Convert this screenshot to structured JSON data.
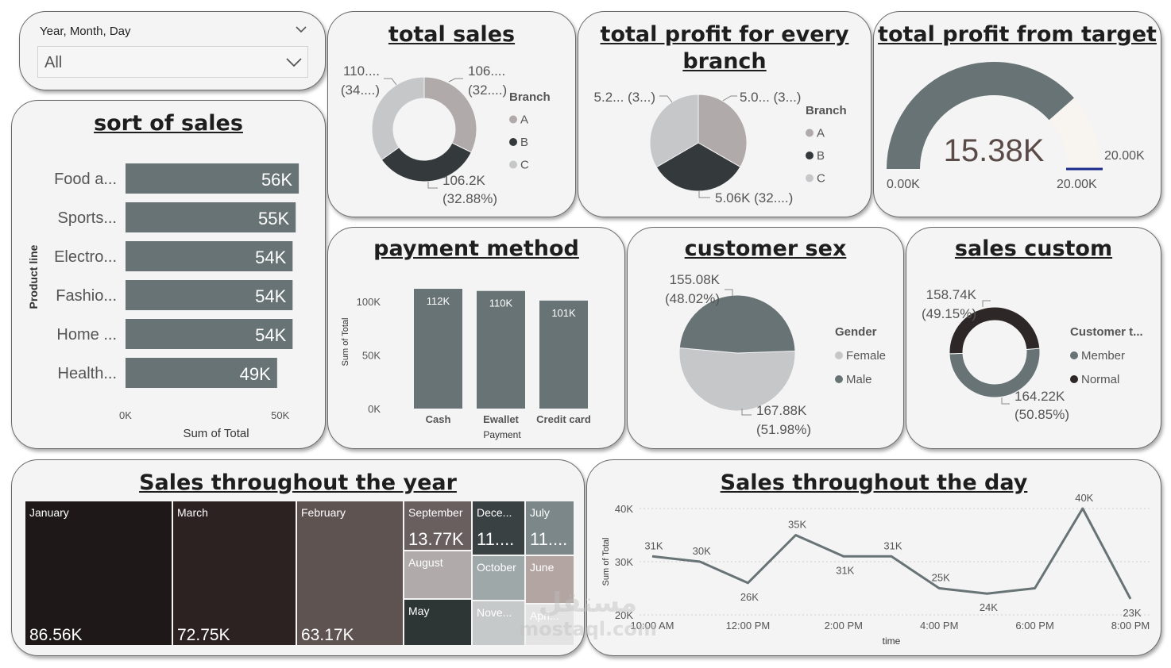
{
  "filter": {
    "label": "Year, Month, Day",
    "selected": "All"
  },
  "palette": {
    "slate": "#687376",
    "dark": "#343a3b",
    "light": "#c5c7c9",
    "taupe": "#b1aaaa",
    "cream": "#f8f5f0",
    "navy": "#1a2a8a"
  },
  "sort_of_sales": {
    "title": "sort of sales",
    "chart_data": {
      "type": "bar",
      "orientation": "horizontal",
      "categories": [
        "Food a...",
        "Sports...",
        "Electro...",
        "Fashio...",
        "Home ...",
        "Health..."
      ],
      "values": [
        56,
        55,
        54,
        54,
        54,
        49
      ],
      "labels": [
        "56K",
        "55K",
        "54K",
        "54K",
        "54K",
        "49K"
      ],
      "xlim": [
        0,
        57
      ],
      "ticks": [
        "0K",
        "50K"
      ],
      "tick_values": [
        0,
        50
      ],
      "xlabel": "Sum of Total",
      "ylabel": "Product line"
    }
  },
  "total_sales": {
    "title": "total sales",
    "chart_data": {
      "type": "pie",
      "donut": true,
      "legend_title": "Branch",
      "slices": [
        {
          "name": "A",
          "value": 32.25,
          "color": "#b1aaaa",
          "label1": "106....",
          "label2": "(32....)"
        },
        {
          "name": "B",
          "value": 32.88,
          "color": "#343a3b",
          "label1": "106.2K",
          "label2": "(32.88%)"
        },
        {
          "name": "C",
          "value": 34.87,
          "color": "#c5c7c9",
          "label1": "110....",
          "label2": "(34....)"
        }
      ]
    }
  },
  "profit_branch": {
    "title": [
      "total profit for every",
      "branch"
    ],
    "chart_data": {
      "type": "pie",
      "legend_title": "Branch",
      "slices": [
        {
          "name": "A",
          "value": 33.3,
          "color": "#b1aaaa",
          "label1": "5.0... (3...)"
        },
        {
          "name": "B",
          "value": 33.3,
          "color": "#343a3b",
          "label1": "5.06K (32....)"
        },
        {
          "name": "C",
          "value": 33.4,
          "color": "#c5c7c9",
          "label1": "5.2... (3...)"
        }
      ]
    }
  },
  "profit_target": {
    "title": "total profit from target",
    "chart_data": {
      "type": "gauge",
      "value": 15.38,
      "min": 0,
      "max": 20,
      "target": 20,
      "value_label": "15.38K",
      "min_label": "0.00K",
      "max_label": "20.00K",
      "target_label": "20.00K"
    }
  },
  "payment_method": {
    "title": "payment method",
    "chart_data": {
      "type": "bar",
      "categories": [
        "Cash",
        "Ewallet",
        "Credit card"
      ],
      "values": [
        112,
        110,
        101
      ],
      "labels": [
        "112K",
        "110K",
        "101K"
      ],
      "ylim": [
        0,
        115
      ],
      "ticks": [
        "0K",
        "50K",
        "100K"
      ],
      "tick_values": [
        0,
        50,
        100
      ],
      "xlabel": "Payment",
      "ylabel": "Sum of Total"
    }
  },
  "customer_sex": {
    "title": "customer sex",
    "chart_data": {
      "type": "pie",
      "legend_title": "Gender",
      "slices": [
        {
          "name": "Female",
          "value": 51.98,
          "color": "#c5c7c9",
          "label1": "167.88K",
          "label2": "(51.98%)"
        },
        {
          "name": "Male",
          "value": 48.02,
          "color": "#687376",
          "label1": "155.08K",
          "label2": "(48.02%)"
        }
      ]
    }
  },
  "sales_custom": {
    "title": "sales custom",
    "chart_data": {
      "type": "pie",
      "donut": true,
      "legend_title": "Customer t...",
      "slices": [
        {
          "name": "Member",
          "value": 50.85,
          "color": "#687376",
          "label1": "164.22K",
          "label2": "(50.85%)"
        },
        {
          "name": "Normal",
          "value": 49.15,
          "color": "#2e2727",
          "label1": "158.74K",
          "label2": "(49.15%)"
        }
      ]
    }
  },
  "sales_year": {
    "title": "Sales throughout the year",
    "chart_data": {
      "type": "treemap",
      "items": [
        {
          "name": "January",
          "label": "86.56K",
          "value": 86.56,
          "color": "#1e1818"
        },
        {
          "name": "March",
          "label": "72.75K",
          "value": 72.75,
          "color": "#2d2222"
        },
        {
          "name": "February",
          "label": "63.17K",
          "value": 63.17,
          "color": "#5f5352"
        },
        {
          "name": "September",
          "label": "13.77K",
          "value": 13.77,
          "color": "#695f5f"
        },
        {
          "name": "August",
          "label": "",
          "value": null,
          "color": "#b1aaaa"
        },
        {
          "name": "May",
          "label": "",
          "value": null,
          "color": "#2e3535"
        },
        {
          "name": "Dece...",
          "label": "11....",
          "value": null,
          "color": "#394142"
        },
        {
          "name": "October",
          "label": "",
          "value": null,
          "color": "#9fa8a9"
        },
        {
          "name": "Nove...",
          "label": "",
          "value": null,
          "color": "#c6c9ca"
        },
        {
          "name": "July",
          "label": "11....",
          "value": null,
          "color": "#7c8789"
        },
        {
          "name": "June",
          "label": "",
          "value": null,
          "color": "#b3a5a2"
        },
        {
          "name": "Apri...",
          "label": "",
          "value": null,
          "color": "#e3e3e3"
        }
      ]
    }
  },
  "sales_day": {
    "title": "Sales throughout the day",
    "chart_data": {
      "type": "line",
      "x": [
        10,
        11,
        12,
        13,
        14,
        15,
        16,
        17,
        18,
        19,
        20
      ],
      "values": [
        31,
        30,
        26,
        35,
        31,
        31,
        25,
        24,
        25,
        40,
        23
      ],
      "labels": [
        "31K",
        "30K",
        "26K",
        "35K",
        "31K",
        "31K",
        "25K",
        "24K",
        "",
        "40K",
        "23K"
      ],
      "ylim": [
        20,
        40
      ],
      "yticks": [
        "20K",
        "30K",
        "40K"
      ],
      "ytick_values": [
        20,
        30,
        40
      ],
      "xticks": [
        "10:00 AM",
        "12:00 PM",
        "2:00 PM",
        "4:00 PM",
        "6:00 PM",
        "8:00 PM"
      ],
      "xtick_values": [
        10,
        12,
        14,
        16,
        18,
        20
      ],
      "xlabel": "time",
      "ylabel": "Sum of Total",
      "color": "#687376"
    }
  },
  "watermark": {
    "arabic": "مستقل",
    "latin": "mostaql.com"
  }
}
